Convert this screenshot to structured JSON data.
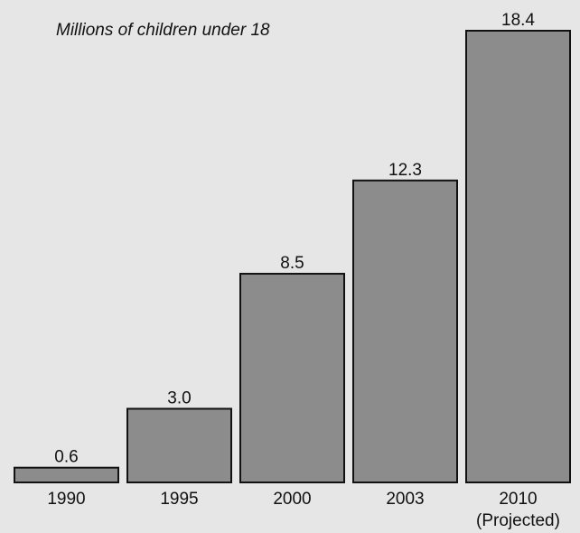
{
  "chart_data": {
    "type": "bar",
    "title": "",
    "subtitle": "Millions of children under 18",
    "xlabel": "",
    "ylabel": "",
    "categories": [
      "1990",
      "1995",
      "2000",
      "2003",
      "2010"
    ],
    "category_notes": [
      "",
      "",
      "",
      "",
      "(Projected)"
    ],
    "values": [
      0.6,
      3.0,
      8.5,
      12.3,
      18.4
    ],
    "value_labels": [
      "0.6",
      "3.0",
      "8.5",
      "12.3",
      "18.4"
    ],
    "ylim": [
      0,
      18.4
    ],
    "grid": false,
    "colors": {
      "bar_fill": "#8c8c8c",
      "bar_stroke": "#111111",
      "background": "#e6e6e6"
    }
  }
}
